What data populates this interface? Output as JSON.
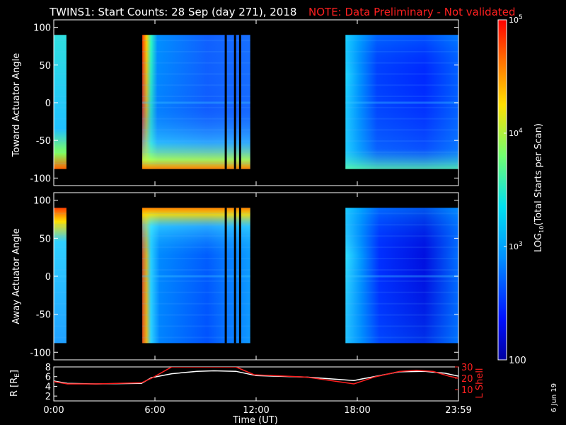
{
  "header": {
    "title": "TWINS1: Start Counts: 28 Sep (day 271), 2018",
    "note": "NOTE: Data Preliminary - Not validated"
  },
  "footer": {
    "date_stamp": "6 Jun 19"
  },
  "colors": {
    "note": "#ff2020",
    "axes": "#ffffff",
    "lshell": "#ff2020",
    "r_line": "#ffffff"
  },
  "chart_data": [
    {
      "type": "heatmap",
      "panel": "toward",
      "ylabel": "Toward Actuator Angle",
      "x_ticks": [
        "0:00",
        "6:00",
        "12:00",
        "18:00",
        "23:59"
      ],
      "ylim": [
        -110,
        110
      ],
      "y_ticks": [
        100,
        50,
        0,
        -50,
        -100
      ],
      "x_range_hours": [
        0,
        24
      ],
      "data_blocks_hours": [
        [
          0,
          0.1
        ],
        [
          0,
          0.75
        ],
        [
          5.25,
          11.65
        ],
        [
          17.3,
          24.0
        ]
      ],
      "gap_lines_hours": [
        10.2,
        10.75,
        11.05
      ],
      "angle_coverage": [
        -88,
        90
      ]
    },
    {
      "type": "heatmap",
      "panel": "away",
      "ylabel": "Away Actuator Angle",
      "x_ticks": [
        "0:00",
        "6:00",
        "12:00",
        "18:00",
        "23:59"
      ],
      "ylim": [
        -110,
        110
      ],
      "y_ticks": [
        100,
        50,
        0,
        -50,
        -100
      ],
      "x_range_hours": [
        0,
        24
      ],
      "data_blocks_hours": [
        [
          0,
          0.75
        ],
        [
          5.25,
          11.65
        ],
        [
          17.3,
          24.0
        ]
      ],
      "gap_lines_hours": [
        10.2,
        10.75,
        11.05
      ],
      "angle_coverage": [
        -88,
        90
      ]
    },
    {
      "type": "line",
      "panel": "orbit",
      "xlabel": "Time (UT)",
      "ylabel_left": "R [R",
      "ylabel_left_sub": "E",
      "ylabel_left_end": "]",
      "ylabel_right": "L Shell",
      "x_ticks": [
        "0:00",
        "6:00",
        "12:00",
        "18:00",
        "23:59"
      ],
      "left_ticks": [
        8,
        6,
        4,
        2
      ],
      "right_ticks": [
        30,
        20,
        10
      ],
      "ylim_left": [
        1,
        8
      ],
      "ylim_right": [
        0,
        30
      ],
      "series": [
        {
          "axis": "left",
          "x": [
            0.0,
            0.8,
            2.5,
            5.2,
            5.8,
            7.0,
            8.5,
            9.5,
            10.8,
            12.0,
            15.0,
            17.8,
            19.0,
            20.5,
            22.0,
            23.2,
            24.0
          ],
          "values": [
            5.1,
            4.6,
            4.5,
            4.6,
            5.8,
            6.6,
            7.1,
            7.2,
            7.1,
            6.2,
            5.9,
            5.2,
            6.0,
            7.0,
            7.1,
            6.7,
            6.1
          ]
        },
        {
          "axis": "right",
          "x": [
            0.0,
            0.8,
            2.5,
            5.2,
            5.8,
            7.0,
            7.1,
            10.8,
            11.9,
            12.0,
            15.0,
            17.8,
            19.0,
            20.5,
            21.5,
            22.5,
            23.4,
            24.0
          ],
          "values": [
            17,
            15,
            15,
            16,
            20,
            30,
            30,
            30,
            23,
            23,
            21,
            15,
            21,
            26,
            27,
            26,
            22,
            20
          ]
        }
      ]
    },
    {
      "type": "heatmap",
      "panel": "colorbar",
      "label_main": "LOG",
      "label_sub": "10",
      "label_rest": "(Total Starts per Scan)",
      "tick_labels": [
        {
          "value": 100,
          "base": "100",
          "exp": ""
        },
        {
          "value": 1000,
          "base": "10",
          "exp": "3"
        },
        {
          "value": 10000,
          "base": "10",
          "exp": "4"
        },
        {
          "value": 100000,
          "base": "10",
          "exp": "5"
        }
      ],
      "range": [
        100,
        100000
      ],
      "scale": "log"
    }
  ]
}
